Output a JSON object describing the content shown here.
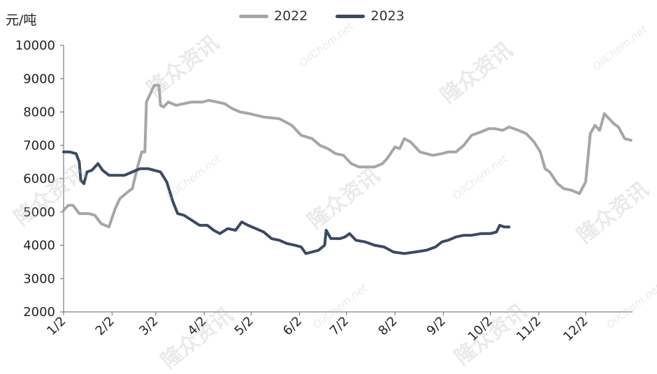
{
  "chart_data": {
    "type": "line",
    "unit_label": "元/吨",
    "x_tick_labels": [
      "1/2",
      "2/2",
      "3/2",
      "4/2",
      "5/2",
      "6/2",
      "7/2",
      "8/2",
      "9/2",
      "10/2",
      "11/2",
      "12/2"
    ],
    "y_tick_labels": [
      "2000",
      "3000",
      "4000",
      "5000",
      "6000",
      "7000",
      "8000",
      "9000",
      "10000"
    ],
    "ylim": [
      2000,
      10000
    ],
    "grid": false,
    "legend_position": "top",
    "watermark_cn": "隆众资讯",
    "watermark_en": "OilChem.net",
    "series": [
      {
        "name": "2022",
        "color": "#a6a6a6",
        "points": [
          [
            "01-02",
            5050
          ],
          [
            "01-05",
            5200
          ],
          [
            "01-08",
            5200
          ],
          [
            "01-12",
            4950
          ],
          [
            "01-18",
            4950
          ],
          [
            "01-22",
            4900
          ],
          [
            "01-26",
            4650
          ],
          [
            "01-31",
            4550
          ],
          [
            "02-04",
            5100
          ],
          [
            "02-07",
            5400
          ],
          [
            "02-12",
            5600
          ],
          [
            "02-15",
            5700
          ],
          [
            "02-18",
            6300
          ],
          [
            "02-21",
            6800
          ],
          [
            "02-23",
            6800
          ],
          [
            "02-24",
            8300
          ],
          [
            "02-26",
            8500
          ],
          [
            "03-01",
            8800
          ],
          [
            "03-04",
            8800
          ],
          [
            "03-05",
            8200
          ],
          [
            "03-07",
            8150
          ],
          [
            "03-10",
            8300
          ],
          [
            "03-15",
            8200
          ],
          [
            "03-20",
            8250
          ],
          [
            "03-25",
            8300
          ],
          [
            "04-01",
            8300
          ],
          [
            "04-05",
            8350
          ],
          [
            "04-10",
            8300
          ],
          [
            "04-15",
            8250
          ],
          [
            "04-20",
            8100
          ],
          [
            "04-25",
            8000
          ],
          [
            "05-01",
            7950
          ],
          [
            "05-10",
            7850
          ],
          [
            "05-20",
            7800
          ],
          [
            "05-28",
            7600
          ],
          [
            "06-03",
            7300
          ],
          [
            "06-10",
            7200
          ],
          [
            "06-15",
            7000
          ],
          [
            "06-20",
            6900
          ],
          [
            "06-25",
            6750
          ],
          [
            "06-30",
            6700
          ],
          [
            "07-05",
            6450
          ],
          [
            "07-10",
            6350
          ],
          [
            "07-20",
            6350
          ],
          [
            "07-25",
            6450
          ],
          [
            "07-28",
            6600
          ],
          [
            "08-02",
            6950
          ],
          [
            "08-05",
            6900
          ],
          [
            "08-08",
            7200
          ],
          [
            "08-12",
            7100
          ],
          [
            "08-18",
            6800
          ],
          [
            "08-22",
            6750
          ],
          [
            "08-26",
            6700
          ],
          [
            "09-01",
            6750
          ],
          [
            "09-05",
            6800
          ],
          [
            "09-10",
            6800
          ],
          [
            "09-15",
            7000
          ],
          [
            "09-20",
            7300
          ],
          [
            "09-26",
            7400
          ],
          [
            "10-01",
            7500
          ],
          [
            "10-05",
            7500
          ],
          [
            "10-10",
            7450
          ],
          [
            "10-14",
            7550
          ],
          [
            "10-20",
            7450
          ],
          [
            "10-25",
            7350
          ],
          [
            "10-30",
            7100
          ],
          [
            "11-03",
            6800
          ],
          [
            "11-06",
            6300
          ],
          [
            "11-09",
            6200
          ],
          [
            "11-14",
            5850
          ],
          [
            "11-18",
            5700
          ],
          [
            "11-23",
            5650
          ],
          [
            "11-28",
            5550
          ],
          [
            "12-02",
            5900
          ],
          [
            "12-05",
            7350
          ],
          [
            "12-08",
            7600
          ],
          [
            "12-11",
            7450
          ],
          [
            "12-14",
            7950
          ],
          [
            "12-17",
            7800
          ],
          [
            "12-20",
            7650
          ],
          [
            "12-23",
            7550
          ],
          [
            "12-27",
            7200
          ],
          [
            "12-31",
            7150
          ]
        ]
      },
      {
        "name": "2023",
        "color": "#3b4a63",
        "points": [
          [
            "01-02",
            6800
          ],
          [
            "01-06",
            6800
          ],
          [
            "01-10",
            6750
          ],
          [
            "01-12",
            6500
          ],
          [
            "01-13",
            5950
          ],
          [
            "01-15",
            5850
          ],
          [
            "01-17",
            6200
          ],
          [
            "01-20",
            6250
          ],
          [
            "01-24",
            6450
          ],
          [
            "01-27",
            6250
          ],
          [
            "01-31",
            6100
          ],
          [
            "02-05",
            6100
          ],
          [
            "02-10",
            6100
          ],
          [
            "02-15",
            6200
          ],
          [
            "02-20",
            6300
          ],
          [
            "02-25",
            6300
          ],
          [
            "03-01",
            6250
          ],
          [
            "03-05",
            6200
          ],
          [
            "03-09",
            5900
          ],
          [
            "03-13",
            5300
          ],
          [
            "03-16",
            4950
          ],
          [
            "03-20",
            4900
          ],
          [
            "03-25",
            4750
          ],
          [
            "03-30",
            4600
          ],
          [
            "04-04",
            4600
          ],
          [
            "04-08",
            4450
          ],
          [
            "04-12",
            4350
          ],
          [
            "04-17",
            4500
          ],
          [
            "04-22",
            4450
          ],
          [
            "04-26",
            4700
          ],
          [
            "04-30",
            4600
          ],
          [
            "05-05",
            4500
          ],
          [
            "05-10",
            4400
          ],
          [
            "05-15",
            4200
          ],
          [
            "05-20",
            4150
          ],
          [
            "05-25",
            4050
          ],
          [
            "05-30",
            4000
          ],
          [
            "06-03",
            3950
          ],
          [
            "06-06",
            3750
          ],
          [
            "06-10",
            3800
          ],
          [
            "06-14",
            3850
          ],
          [
            "06-18",
            4000
          ],
          [
            "06-19",
            4450
          ],
          [
            "06-22",
            4200
          ],
          [
            "06-28",
            4200
          ],
          [
            "07-01",
            4250
          ],
          [
            "07-04",
            4350
          ],
          [
            "07-08",
            4150
          ],
          [
            "07-14",
            4100
          ],
          [
            "07-20",
            4000
          ],
          [
            "07-26",
            3950
          ],
          [
            "08-01",
            3800
          ],
          [
            "08-08",
            3750
          ],
          [
            "08-15",
            3800
          ],
          [
            "08-22",
            3850
          ],
          [
            "08-28",
            3950
          ],
          [
            "09-01",
            4100
          ],
          [
            "09-05",
            4150
          ],
          [
            "09-10",
            4250
          ],
          [
            "09-15",
            4300
          ],
          [
            "09-20",
            4300
          ],
          [
            "09-26",
            4350
          ],
          [
            "10-02",
            4350
          ],
          [
            "10-06",
            4400
          ],
          [
            "10-08",
            4600
          ],
          [
            "10-11",
            4550
          ],
          [
            "10-14",
            4550
          ]
        ]
      }
    ]
  }
}
